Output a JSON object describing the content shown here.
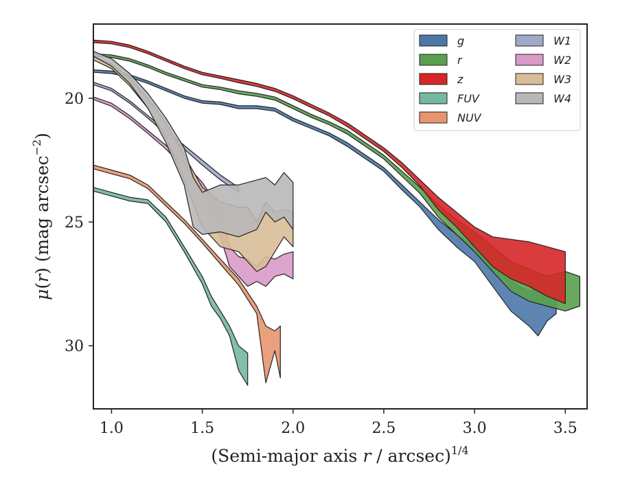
{
  "chart_data": {
    "type": "area",
    "xlabel": "(Semi-major axis r / arcsec)^1/4",
    "xlabel_parts": {
      "prefix": "(Semi-major axis ",
      "var": "r",
      "mid": " / arcsec)",
      "exp": "1/4"
    },
    "ylabel": "μ(r) (mag arcsec^−2)",
    "ylabel_parts": {
      "mu": "μ",
      "open": "(",
      "var": "r",
      "close": ") (mag arcsec",
      "exp": "−2",
      "end": ")"
    },
    "xlim": [
      0.9,
      3.62
    ],
    "ylim": [
      32.55,
      17.0
    ],
    "y_inverted": true,
    "xticks": [
      1.0,
      1.5,
      2.0,
      2.5,
      3.0,
      3.5
    ],
    "xtick_labels": [
      "1.0",
      "1.5",
      "2.0",
      "2.5",
      "3.0",
      "3.5"
    ],
    "yticks": [
      20,
      25,
      30
    ],
    "ytick_labels": [
      "20",
      "25",
      "30"
    ],
    "grid": false,
    "legend_position": "top-right",
    "legend_columns": 2,
    "series": [
      {
        "name": "g",
        "color": "#4c78a8",
        "points": [
          [
            0.9,
            18.85,
            18.95
          ],
          [
            1.0,
            18.9,
            19.0
          ],
          [
            1.1,
            19.05,
            19.15
          ],
          [
            1.2,
            19.3,
            19.4
          ],
          [
            1.3,
            19.6,
            19.7
          ],
          [
            1.4,
            19.9,
            20.0
          ],
          [
            1.5,
            20.1,
            20.2
          ],
          [
            1.6,
            20.15,
            20.25
          ],
          [
            1.7,
            20.3,
            20.42
          ],
          [
            1.8,
            20.3,
            20.42
          ],
          [
            1.9,
            20.4,
            20.52
          ],
          [
            2.0,
            20.8,
            20.92
          ],
          [
            2.1,
            21.1,
            21.22
          ],
          [
            2.2,
            21.4,
            21.52
          ],
          [
            2.3,
            21.8,
            21.95
          ],
          [
            2.4,
            22.3,
            22.45
          ],
          [
            2.5,
            22.8,
            22.95
          ],
          [
            2.6,
            23.5,
            23.7
          ],
          [
            2.7,
            24.2,
            24.4
          ],
          [
            2.8,
            24.9,
            25.3
          ],
          [
            2.9,
            25.5,
            26.0
          ],
          [
            3.0,
            26.0,
            26.6
          ],
          [
            3.1,
            26.8,
            27.6
          ],
          [
            3.2,
            27.4,
            28.6
          ],
          [
            3.3,
            27.8,
            29.2
          ],
          [
            3.35,
            27.7,
            29.6
          ],
          [
            3.4,
            27.9,
            29.0
          ],
          [
            3.45,
            27.7,
            28.7
          ]
        ]
      },
      {
        "name": "r",
        "color": "#59a14f",
        "points": [
          [
            0.9,
            18.2,
            18.3
          ],
          [
            1.0,
            18.25,
            18.35
          ],
          [
            1.1,
            18.4,
            18.5
          ],
          [
            1.2,
            18.65,
            18.75
          ],
          [
            1.3,
            18.95,
            19.05
          ],
          [
            1.4,
            19.2,
            19.3
          ],
          [
            1.5,
            19.45,
            19.55
          ],
          [
            1.6,
            19.55,
            19.65
          ],
          [
            1.7,
            19.7,
            19.82
          ],
          [
            1.8,
            19.8,
            19.92
          ],
          [
            1.9,
            19.95,
            20.07
          ],
          [
            2.0,
            20.3,
            20.42
          ],
          [
            2.1,
            20.65,
            20.77
          ],
          [
            2.2,
            20.95,
            21.07
          ],
          [
            2.3,
            21.3,
            21.45
          ],
          [
            2.4,
            21.8,
            21.95
          ],
          [
            2.5,
            22.3,
            22.45
          ],
          [
            2.6,
            22.95,
            23.15
          ],
          [
            2.7,
            23.6,
            23.85
          ],
          [
            2.8,
            24.3,
            24.8
          ],
          [
            2.9,
            24.9,
            25.5
          ],
          [
            3.0,
            25.4,
            26.2
          ],
          [
            3.1,
            26.0,
            27.0
          ],
          [
            3.2,
            26.6,
            27.8
          ],
          [
            3.3,
            26.9,
            28.2
          ],
          [
            3.4,
            27.2,
            28.4
          ],
          [
            3.5,
            27.0,
            28.6
          ],
          [
            3.58,
            27.2,
            28.4
          ]
        ]
      },
      {
        "name": "z",
        "color": "#d62728",
        "points": [
          [
            0.9,
            17.65,
            17.75
          ],
          [
            1.0,
            17.7,
            17.8
          ],
          [
            1.1,
            17.85,
            17.95
          ],
          [
            1.2,
            18.1,
            18.2
          ],
          [
            1.3,
            18.4,
            18.5
          ],
          [
            1.4,
            18.7,
            18.8
          ],
          [
            1.5,
            18.95,
            19.05
          ],
          [
            1.6,
            19.1,
            19.2
          ],
          [
            1.7,
            19.25,
            19.37
          ],
          [
            1.8,
            19.4,
            19.52
          ],
          [
            1.9,
            19.6,
            19.72
          ],
          [
            2.0,
            19.9,
            20.02
          ],
          [
            2.1,
            20.25,
            20.37
          ],
          [
            2.2,
            20.6,
            20.72
          ],
          [
            2.3,
            21.0,
            21.15
          ],
          [
            2.4,
            21.5,
            21.65
          ],
          [
            2.5,
            22.0,
            22.15
          ],
          [
            2.6,
            22.6,
            22.8
          ],
          [
            2.7,
            23.3,
            23.55
          ],
          [
            2.8,
            24.0,
            24.5
          ],
          [
            2.9,
            24.6,
            25.2
          ],
          [
            3.0,
            25.2,
            26.0
          ],
          [
            3.1,
            25.6,
            26.8
          ],
          [
            3.2,
            25.7,
            27.3
          ],
          [
            3.3,
            25.8,
            27.6
          ],
          [
            3.4,
            26.0,
            28.0
          ],
          [
            3.5,
            26.2,
            28.3
          ]
        ]
      },
      {
        "name": "FUV",
        "color": "#76b7a0",
        "points": [
          [
            0.9,
            23.6,
            23.75
          ],
          [
            1.0,
            23.8,
            23.95
          ],
          [
            1.1,
            24.0,
            24.15
          ],
          [
            1.2,
            24.1,
            24.25
          ],
          [
            1.3,
            24.8,
            25.0
          ],
          [
            1.4,
            26.0,
            26.2
          ],
          [
            1.5,
            27.2,
            27.5
          ],
          [
            1.55,
            28.0,
            28.4
          ],
          [
            1.6,
            28.6,
            28.9
          ],
          [
            1.65,
            29.2,
            29.6
          ],
          [
            1.7,
            30.0,
            31.0
          ],
          [
            1.75,
            30.3,
            31.6
          ]
        ]
      },
      {
        "name": "NUV",
        "color": "#e8956f",
        "points": [
          [
            0.9,
            22.7,
            22.85
          ],
          [
            1.0,
            22.9,
            23.05
          ],
          [
            1.1,
            23.1,
            23.25
          ],
          [
            1.2,
            23.5,
            23.65
          ],
          [
            1.3,
            24.2,
            24.35
          ],
          [
            1.4,
            24.9,
            25.05
          ],
          [
            1.5,
            25.7,
            25.85
          ],
          [
            1.6,
            26.5,
            26.7
          ],
          [
            1.7,
            27.3,
            27.55
          ],
          [
            1.8,
            28.4,
            28.7
          ],
          [
            1.85,
            29.2,
            31.5
          ],
          [
            1.9,
            29.4,
            30.2
          ],
          [
            1.93,
            29.2,
            31.3
          ]
        ]
      },
      {
        "name": "W1",
        "color": "#9fa9c8",
        "points": [
          [
            0.9,
            19.35,
            19.45
          ],
          [
            1.0,
            19.6,
            19.7
          ],
          [
            1.1,
            20.1,
            20.2
          ],
          [
            1.2,
            20.7,
            20.8
          ],
          [
            1.3,
            21.3,
            21.45
          ],
          [
            1.4,
            21.9,
            22.05
          ],
          [
            1.5,
            22.5,
            22.7
          ],
          [
            1.6,
            23.1,
            23.3
          ],
          [
            1.7,
            23.6,
            23.8
          ]
        ]
      },
      {
        "name": "W2",
        "color": "#d99ac8",
        "points": [
          [
            0.9,
            19.95,
            20.05
          ],
          [
            1.0,
            20.2,
            20.32
          ],
          [
            1.1,
            20.7,
            20.82
          ],
          [
            1.2,
            21.3,
            21.42
          ],
          [
            1.3,
            21.9,
            22.05
          ],
          [
            1.4,
            22.6,
            22.8
          ],
          [
            1.5,
            23.4,
            23.7
          ],
          [
            1.6,
            24.5,
            25.6
          ],
          [
            1.65,
            26.0,
            26.8
          ],
          [
            1.7,
            26.4,
            27.2
          ],
          [
            1.75,
            26.5,
            27.6
          ],
          [
            1.8,
            26.8,
            27.4
          ],
          [
            1.85,
            26.4,
            27.6
          ],
          [
            1.9,
            26.5,
            27.2
          ],
          [
            1.95,
            26.3,
            27.1
          ],
          [
            2.0,
            26.2,
            27.3
          ]
        ]
      },
      {
        "name": "W3",
        "color": "#d8bc98",
        "points": [
          [
            0.9,
            18.3,
            18.45
          ],
          [
            1.0,
            18.6,
            18.8
          ],
          [
            1.1,
            19.2,
            19.5
          ],
          [
            1.2,
            20.0,
            20.4
          ],
          [
            1.3,
            21.0,
            21.6
          ],
          [
            1.4,
            22.3,
            23.3
          ],
          [
            1.5,
            23.6,
            25.2
          ],
          [
            1.6,
            24.2,
            26.0
          ],
          [
            1.7,
            24.4,
            26.2
          ],
          [
            1.75,
            24.4,
            26.6
          ],
          [
            1.8,
            25.0,
            27.0
          ],
          [
            1.85,
            24.2,
            26.8
          ],
          [
            1.9,
            24.6,
            26.2
          ],
          [
            1.95,
            24.5,
            25.6
          ],
          [
            2.0,
            24.6,
            26.0
          ]
        ]
      },
      {
        "name": "W4",
        "color": "#b8b8b8",
        "points": [
          [
            0.9,
            18.1,
            18.3
          ],
          [
            1.0,
            18.4,
            18.7
          ],
          [
            1.1,
            19.0,
            19.4
          ],
          [
            1.2,
            19.8,
            20.4
          ],
          [
            1.3,
            20.8,
            21.8
          ],
          [
            1.4,
            22.0,
            23.5
          ],
          [
            1.45,
            23.2,
            25.2
          ],
          [
            1.5,
            23.8,
            25.5
          ],
          [
            1.6,
            23.5,
            25.4
          ],
          [
            1.7,
            23.5,
            25.6
          ],
          [
            1.8,
            23.3,
            25.3
          ],
          [
            1.85,
            23.2,
            24.6
          ],
          [
            1.9,
            23.5,
            25.0
          ],
          [
            1.95,
            23.0,
            24.8
          ],
          [
            2.0,
            23.4,
            25.3
          ]
        ]
      }
    ],
    "legend": [
      {
        "label": "g",
        "color": "#4c78a8"
      },
      {
        "label": "r",
        "color": "#59a14f"
      },
      {
        "label": "z",
        "color": "#d62728"
      },
      {
        "label": "FUV",
        "color": "#76b7a0"
      },
      {
        "label": "NUV",
        "color": "#e8956f"
      },
      {
        "label": "W1",
        "color": "#9fa9c8"
      },
      {
        "label": "W2",
        "color": "#d99ac8"
      },
      {
        "label": "W3",
        "color": "#d8bc98"
      },
      {
        "label": "W4",
        "color": "#b8b8b8"
      }
    ]
  }
}
